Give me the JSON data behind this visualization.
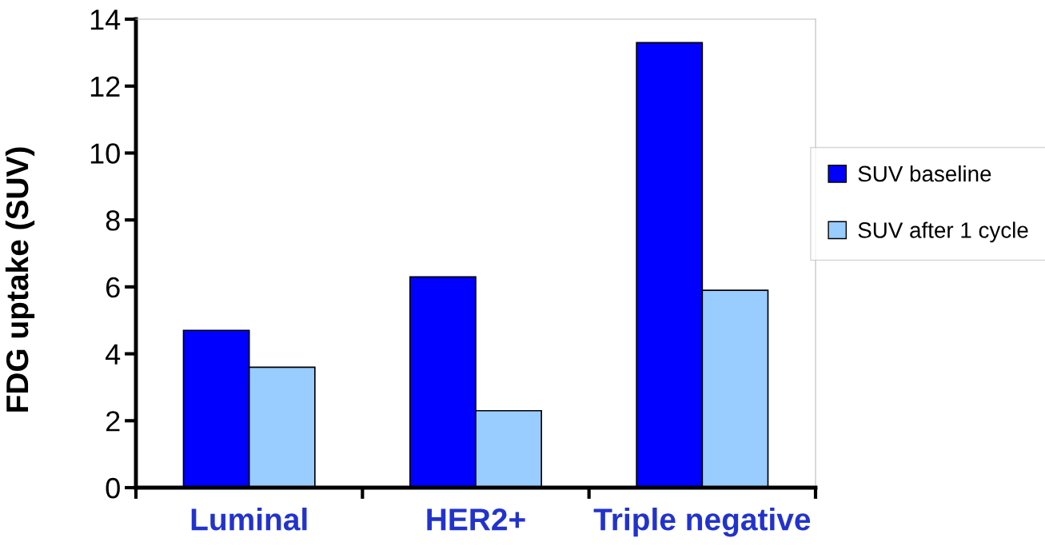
{
  "chart_data": {
    "type": "bar",
    "ylabel": "FDG uptake (SUV)",
    "categories": [
      "Luminal",
      "HER2+",
      "Triple negative"
    ],
    "series": [
      {
        "name": "SUV baseline",
        "color": "#0000ff",
        "values": [
          4.7,
          6.3,
          13.3
        ]
      },
      {
        "name": "SUV after 1 cycle",
        "color": "#99ccff",
        "values": [
          3.6,
          2.3,
          5.9
        ]
      }
    ],
    "ylim": [
      0,
      14
    ],
    "yticks": [
      0,
      2,
      4,
      6,
      8,
      10,
      12,
      14
    ],
    "grid": false,
    "legend": "right"
  }
}
